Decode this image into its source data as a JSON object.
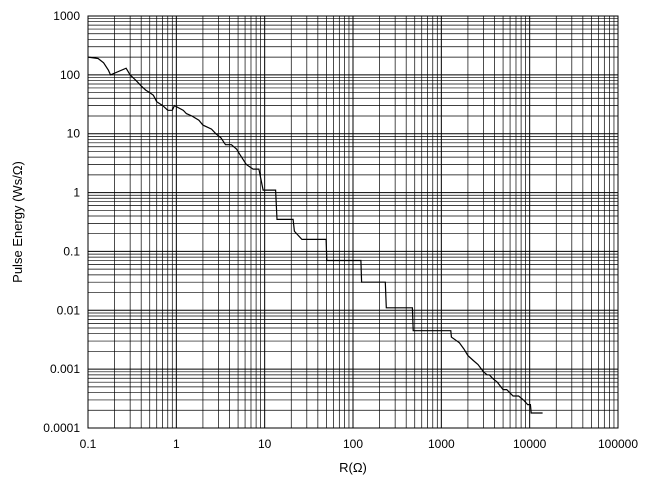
{
  "chart_data": {
    "type": "line",
    "xlabel": "R(Ω)",
    "ylabel": "Pulse Energy (Ws/Ω)",
    "title": "",
    "x_scale": "log",
    "y_scale": "log",
    "xlim": [
      0.1,
      100000
    ],
    "ylim": [
      0.0001,
      1000
    ],
    "grid": true,
    "legend": "none",
    "x_tick_labels": [
      "0.1",
      "1",
      "10",
      "100",
      "1000",
      "10000",
      "100000"
    ],
    "y_tick_labels": [
      "0.0001",
      "0.001",
      "0.01",
      "0.1",
      "1",
      "10",
      "100",
      "1000"
    ],
    "line_color": "#000000",
    "grid_color": "#000000",
    "series": [
      {
        "x": [
          0.1,
          0.13,
          0.15,
          0.17,
          0.18,
          0.27,
          0.3,
          0.35,
          0.4,
          0.45,
          0.5,
          0.55,
          0.6,
          0.7,
          0.8,
          0.9,
          0.95,
          1.2,
          1.3,
          1.5,
          1.8,
          2.0,
          2.5,
          2.8,
          3.2,
          3.6,
          4.2,
          4.8,
          5.2,
          6.2,
          7.4,
          8.6,
          9.6,
          13.3,
          13.8,
          21.0,
          21.7,
          26.4,
          27.5,
          49.6,
          50.5,
          123.0,
          125.0,
          232.0,
          238.0,
          470.0,
          480.0,
          1280.0,
          1300.0,
          1600.0,
          1800.0,
          2000.0,
          2300.0,
          2600.0,
          3000.0,
          3300.0,
          3500.0,
          3800.0,
          4300.0,
          5000.0,
          5500.0,
          6500.0,
          7500.0,
          8500.0,
          9500.0,
          10200.0,
          10400.0,
          14000.0
        ],
        "y": [
          200,
          190,
          160,
          120,
          100,
          130,
          100,
          80,
          65,
          55,
          50,
          45,
          35,
          30,
          25,
          25,
          30,
          25,
          22,
          20,
          17,
          14,
          12,
          10,
          8.5,
          6.5,
          6.5,
          5.5,
          4.5,
          3,
          2.5,
          2.5,
          1.1,
          1.1,
          0.35,
          0.35,
          0.22,
          0.16,
          0.16,
          0.16,
          0.07,
          0.07,
          0.03,
          0.03,
          0.011,
          0.011,
          0.0045,
          0.0045,
          0.0035,
          0.0028,
          0.0022,
          0.0017,
          0.0014,
          0.0012,
          0.0009,
          0.0008,
          0.0008,
          0.0007,
          0.0006,
          0.00045,
          0.00045,
          0.00035,
          0.00035,
          0.0003,
          0.00025,
          0.00025,
          0.00018,
          0.00018
        ]
      }
    ]
  }
}
